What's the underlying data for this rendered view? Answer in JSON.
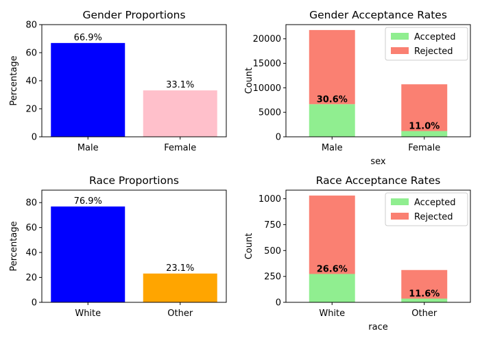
{
  "chart_data": [
    {
      "type": "bar",
      "title": "Gender Proportions",
      "xlabel": "",
      "ylabel": "Percentage",
      "categories": [
        "Male",
        "Female"
      ],
      "values": [
        66.9,
        33.1
      ],
      "value_labels": [
        "66.9%",
        "33.1%"
      ],
      "colors": [
        "#0000ff",
        "#ffc0cb"
      ],
      "ylim": [
        0,
        80
      ],
      "yticks": [
        0,
        20,
        40,
        60,
        80
      ],
      "ytick_labels": [
        "0",
        "20",
        "40",
        "60",
        "80"
      ]
    },
    {
      "type": "bar",
      "stacked": true,
      "title": "Gender Acceptance Rates",
      "xlabel": "sex",
      "ylabel": "Count",
      "categories": [
        "Male",
        "Female"
      ],
      "series": [
        {
          "name": "Accepted",
          "color": "#90ee90",
          "values": [
            6662,
            1179
          ]
        },
        {
          "name": "Rejected",
          "color": "#fa8072",
          "values": [
            15128,
            9539
          ]
        }
      ],
      "rate_labels": [
        "30.6%",
        "11.0%"
      ],
      "ylim": [
        0,
        22894
      ],
      "yticks": [
        0,
        5000,
        10000,
        15000,
        20000
      ],
      "ytick_labels": [
        "0",
        "5000",
        "10000",
        "15000",
        "20000"
      ],
      "legend": "top-right"
    },
    {
      "type": "bar",
      "title": "Race Proportions",
      "xlabel": "",
      "ylabel": "Percentage",
      "categories": [
        "White",
        "Other"
      ],
      "values": [
        76.9,
        23.1
      ],
      "value_labels": [
        "76.9%",
        "23.1%"
      ],
      "colors": [
        "#0000ff",
        "#ffa500"
      ],
      "ylim": [
        0,
        90
      ],
      "yticks": [
        0,
        20,
        40,
        60,
        80
      ],
      "ytick_labels": [
        "0",
        "20",
        "40",
        "60",
        "80"
      ]
    },
    {
      "type": "bar",
      "stacked": true,
      "title": "Race Acceptance Rates",
      "xlabel": "race",
      "ylabel": "Count",
      "categories": [
        "White",
        "Other"
      ],
      "series": [
        {
          "name": "Accepted",
          "color": "#90ee90",
          "values": [
            274,
            36
          ]
        },
        {
          "name": "Rejected",
          "color": "#fa8072",
          "values": [
            757,
            276
          ]
        }
      ],
      "rate_labels": [
        "26.6%",
        "11.6%"
      ],
      "ylim": [
        0,
        1083
      ],
      "yticks": [
        0,
        250,
        500,
        750,
        1000
      ],
      "ytick_labels": [
        "0",
        "250",
        "500",
        "750",
        "1000"
      ],
      "legend": "top-right"
    }
  ]
}
